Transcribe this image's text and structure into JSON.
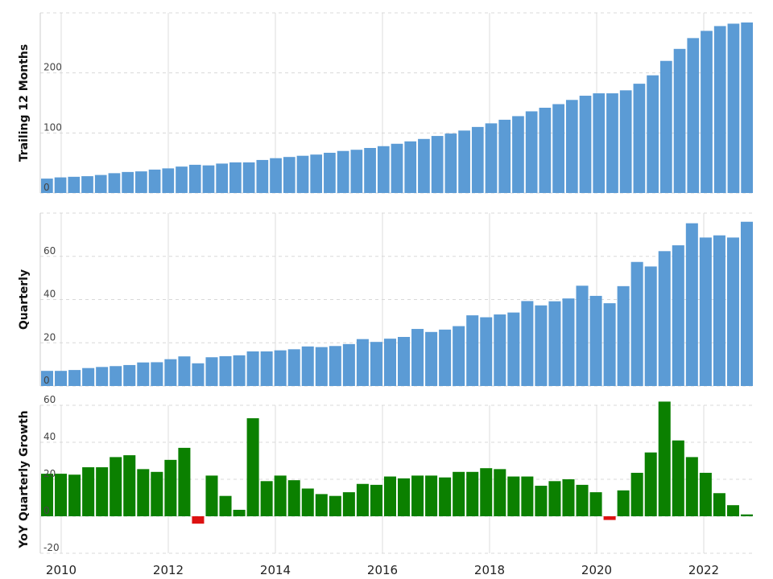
{
  "chart_data": [
    {
      "type": "bar",
      "ylabel": "Trailing 12 Months",
      "ylim": [
        0,
        300
      ],
      "yticks": [
        0,
        100,
        200
      ],
      "x_start": 2010,
      "x_tick_labels": [
        "2010",
        "2012",
        "2014",
        "2016",
        "2018",
        "2020",
        "2022"
      ],
      "grid": true,
      "colors": {
        "positive": "#5b9bd5"
      },
      "values": [
        24,
        26,
        27,
        28,
        30,
        33,
        35,
        36,
        39,
        41,
        44,
        47,
        46,
        49,
        51,
        51,
        55,
        58,
        60,
        62,
        64,
        67,
        70,
        72,
        75,
        78,
        82,
        86,
        90,
        95,
        99,
        104,
        110,
        116,
        122,
        128,
        136,
        142,
        148,
        155,
        162,
        166,
        166,
        171,
        182,
        196,
        220,
        240,
        258,
        270,
        278,
        282,
        284
      ]
    },
    {
      "type": "bar",
      "ylabel": "Quarterly",
      "ylim": [
        0,
        80
      ],
      "yticks": [
        0,
        20,
        40,
        60
      ],
      "x_start": 2010,
      "grid": true,
      "colors": {
        "positive": "#5b9bd5"
      },
      "values": [
        7,
        7,
        7.4,
        8.3,
        8.8,
        9.2,
        9.7,
        10.9,
        11,
        12.4,
        13.7,
        10.5,
        13.3,
        13.8,
        14.2,
        16,
        16,
        16.5,
        17,
        18.3,
        18,
        18.5,
        19.4,
        21.7,
        20.4,
        21.9,
        22.7,
        26.4,
        25,
        26.1,
        27.7,
        32.7,
        31.8,
        33.1,
        34,
        39.3,
        37.3,
        39.2,
        40.5,
        46.4,
        41.7,
        38.3,
        46.2,
        57.4,
        55.3,
        62.4,
        65.1,
        75.3,
        68.7,
        69.7,
        68.7,
        76
      ]
    },
    {
      "type": "bar",
      "ylabel": "YoY Quarterly Growth",
      "ylim": [
        -20,
        60
      ],
      "yticks": [
        -20,
        0,
        20,
        40,
        60
      ],
      "x_start": 2010,
      "grid": true,
      "colors": {
        "positive": "#0b8000",
        "negative": "#dd1111"
      },
      "values": [
        23,
        23,
        22.5,
        26.5,
        26.5,
        32,
        33,
        25.5,
        24,
        30.5,
        37,
        -4,
        22,
        11,
        3.5,
        53,
        19,
        22,
        19.5,
        15,
        12,
        11,
        13,
        17.5,
        17,
        21.5,
        20.5,
        22,
        22,
        21,
        24,
        24,
        26,
        25.5,
        21.5,
        21.5,
        16.5,
        19,
        20,
        17,
        13,
        -2,
        14,
        23.5,
        34.5,
        62,
        41,
        32,
        23.5,
        12.5,
        6,
        1
      ]
    }
  ]
}
